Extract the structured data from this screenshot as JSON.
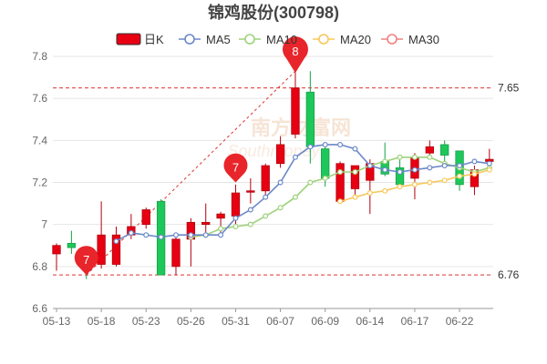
{
  "chart_data": {
    "type": "candlestick",
    "title": "锦鸡股份(300798)",
    "legend": {
      "position": "top",
      "items": [
        {
          "key": "k",
          "label": "日K",
          "color": "#e60012"
        },
        {
          "key": "ma5",
          "label": "MA5",
          "color": "#6b88c8"
        },
        {
          "key": "ma10",
          "label": "MA10",
          "color": "#9ed27a"
        },
        {
          "key": "ma20",
          "label": "MA20",
          "color": "#f7c85a"
        },
        {
          "key": "ma30",
          "label": "MA30",
          "color": "#f08080"
        }
      ]
    },
    "watermark": "南方财富网 Southmoney",
    "ylim": [
      6.6,
      7.8
    ],
    "yticks": [
      "6.6",
      "6.8",
      "7",
      "7.2",
      "7.4",
      "7.6",
      "7.8"
    ],
    "yticks_values": [
      6.6,
      6.8,
      7.0,
      7.2,
      7.4,
      7.6,
      7.8
    ],
    "xticks": [
      {
        "label": "05-13",
        "index": 0
      },
      {
        "label": "05-18",
        "index": 3
      },
      {
        "label": "05-23",
        "index": 6
      },
      {
        "label": "05-26",
        "index": 9
      },
      {
        "label": "05-31",
        "index": 12
      },
      {
        "label": "06-07",
        "index": 15
      },
      {
        "label": "06-09",
        "index": 18
      },
      {
        "label": "06-14",
        "index": 21
      },
      {
        "label": "06-17",
        "index": 24
      },
      {
        "label": "06-22",
        "index": 27
      }
    ],
    "candles": [
      {
        "o": 6.86,
        "h": 6.91,
        "l": 6.78,
        "c": 6.9
      },
      {
        "o": 6.91,
        "h": 6.97,
        "l": 6.86,
        "c": 6.89
      },
      {
        "o": 6.82,
        "h": 6.86,
        "l": 6.74,
        "c": 6.8
      },
      {
        "o": 6.81,
        "h": 7.11,
        "l": 6.79,
        "c": 6.95
      },
      {
        "o": 6.81,
        "h": 6.99,
        "l": 6.8,
        "c": 6.95
      },
      {
        "o": 6.95,
        "h": 7.05,
        "l": 6.93,
        "c": 6.99
      },
      {
        "o": 7.0,
        "h": 7.08,
        "l": 6.98,
        "c": 7.07
      },
      {
        "o": 7.11,
        "h": 7.12,
        "l": 6.76,
        "c": 6.76
      },
      {
        "o": 6.8,
        "h": 6.94,
        "l": 6.76,
        "c": 6.93
      },
      {
        "o": 6.93,
        "h": 7.03,
        "l": 6.8,
        "c": 7.01
      },
      {
        "o": 7.0,
        "h": 7.1,
        "l": 6.96,
        "c": 7.01
      },
      {
        "o": 7.03,
        "h": 7.06,
        "l": 6.95,
        "c": 7.05
      },
      {
        "o": 7.04,
        "h": 7.19,
        "l": 7.0,
        "c": 7.15
      },
      {
        "o": 7.16,
        "h": 7.22,
        "l": 7.1,
        "c": 7.16
      },
      {
        "o": 7.16,
        "h": 7.29,
        "l": 7.12,
        "c": 7.28
      },
      {
        "o": 7.29,
        "h": 7.42,
        "l": 7.27,
        "c": 7.38
      },
      {
        "o": 7.43,
        "h": 7.73,
        "l": 7.41,
        "c": 7.65
      },
      {
        "o": 7.63,
        "h": 7.73,
        "l": 7.29,
        "c": 7.37
      },
      {
        "o": 7.36,
        "h": 7.37,
        "l": 7.18,
        "c": 7.22
      },
      {
        "o": 7.11,
        "h": 7.3,
        "l": 7.11,
        "c": 7.29
      },
      {
        "o": 7.17,
        "h": 7.28,
        "l": 7.14,
        "c": 7.28
      },
      {
        "o": 7.21,
        "h": 7.31,
        "l": 7.05,
        "c": 7.29
      },
      {
        "o": 7.3,
        "h": 7.39,
        "l": 7.23,
        "c": 7.24
      },
      {
        "o": 7.27,
        "h": 7.31,
        "l": 7.17,
        "c": 7.19
      },
      {
        "o": 7.22,
        "h": 7.34,
        "l": 7.12,
        "c": 7.32
      },
      {
        "o": 7.34,
        "h": 7.4,
        "l": 7.31,
        "c": 7.37
      },
      {
        "o": 7.38,
        "h": 7.4,
        "l": 7.27,
        "c": 7.33
      },
      {
        "o": 7.35,
        "h": 7.35,
        "l": 7.16,
        "c": 7.19
      },
      {
        "o": 7.18,
        "h": 7.28,
        "l": 7.14,
        "c": 7.26
      },
      {
        "o": 7.3,
        "h": 7.36,
        "l": 7.27,
        "c": 7.31
      }
    ],
    "ma5": [
      null,
      null,
      null,
      null,
      6.92,
      6.96,
      6.95,
      6.94,
      6.95,
      6.95,
      6.95,
      6.95,
      7.03,
      7.07,
      7.13,
      7.2,
      7.32,
      7.37,
      7.38,
      7.38,
      7.36,
      7.28,
      7.26,
      7.25,
      7.26,
      7.27,
      7.28,
      7.28,
      7.3,
      7.29
    ],
    "ma10": [
      null,
      null,
      null,
      null,
      null,
      null,
      null,
      null,
      null,
      6.94,
      6.95,
      6.98,
      6.99,
      7.0,
      7.04,
      7.08,
      7.13,
      7.2,
      7.22,
      7.25,
      7.25,
      7.28,
      7.3,
      7.32,
      7.32,
      7.32,
      7.29,
      7.27,
      7.25,
      7.27
    ],
    "ma20": [
      null,
      null,
      null,
      null,
      null,
      null,
      null,
      null,
      null,
      null,
      null,
      null,
      null,
      null,
      null,
      null,
      null,
      null,
      null,
      7.11,
      7.13,
      7.15,
      7.16,
      7.18,
      7.19,
      7.2,
      7.21,
      7.23,
      7.24,
      7.26
    ],
    "ma30": [],
    "reference_lines": [
      {
        "value": 7.65,
        "label": "7.65"
      },
      {
        "value": 6.76,
        "label": "6.76"
      }
    ],
    "markers": [
      {
        "index": 16,
        "value": 7.73,
        "label": "8"
      },
      {
        "index": 12,
        "value": 7.2,
        "label": "7"
      },
      {
        "index": 2,
        "value": 6.76,
        "label": "7"
      }
    ]
  }
}
